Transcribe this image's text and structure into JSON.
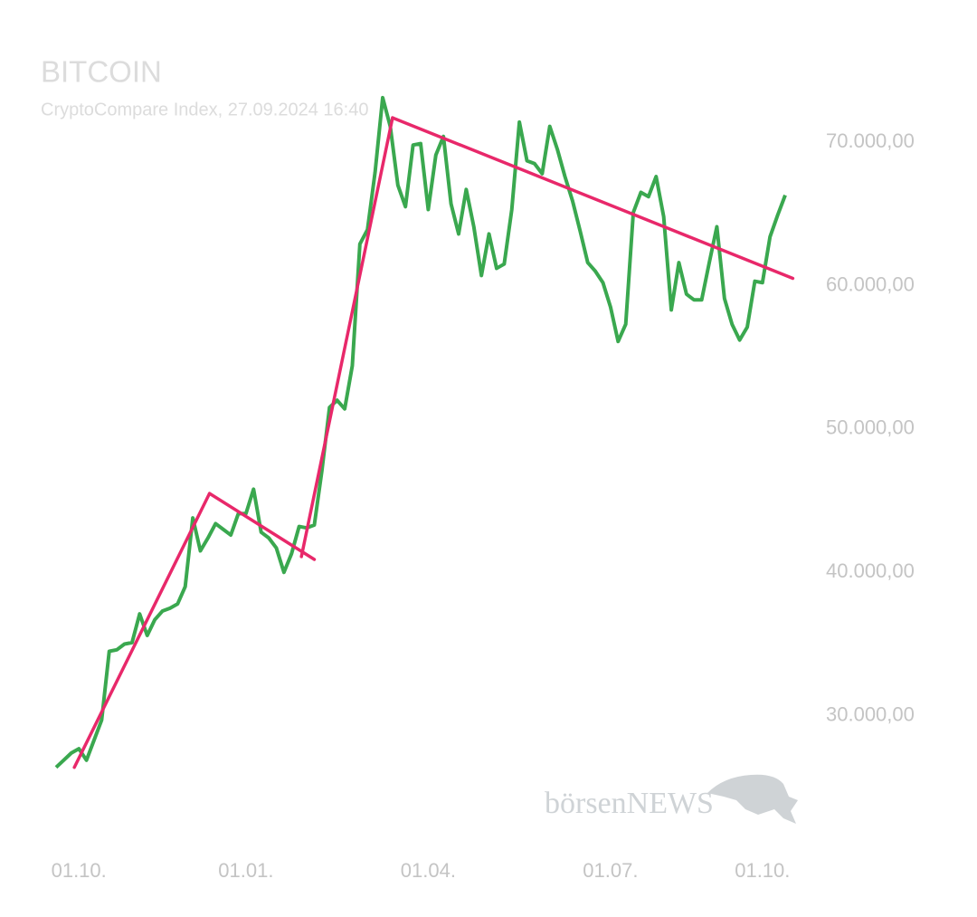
{
  "chart_data": {
    "type": "line",
    "title": "BITCOIN",
    "subtitle": "CryptoCompare Index, 27.09.2024 16:40",
    "watermark": "börsenNEWS",
    "categories": [
      null,
      null,
      null,
      "01.10.",
      null,
      null,
      null,
      null,
      null,
      null,
      null,
      null,
      null,
      null,
      null,
      null,
      null,
      null,
      null,
      null,
      null,
      null,
      null,
      null,
      null,
      "01.01.",
      null,
      null,
      null,
      null,
      null,
      null,
      null,
      null,
      null,
      null,
      null,
      null,
      null,
      null,
      null,
      null,
      null,
      null,
      null,
      null,
      null,
      null,
      null,
      "01.04.",
      null,
      null,
      null,
      null,
      null,
      null,
      null,
      null,
      null,
      null,
      null,
      null,
      null,
      null,
      null,
      null,
      null,
      null,
      null,
      null,
      null,
      null,
      null,
      "01.07.",
      null,
      null,
      null,
      null,
      null,
      null,
      null,
      null,
      null,
      null,
      null,
      null,
      null,
      null,
      null,
      null,
      null,
      null,
      null,
      "01.10.",
      null,
      null,
      null
    ],
    "series": [
      {
        "color": "#3aa84f",
        "values": [
          26400,
          26900,
          27400,
          27700,
          26900,
          28300,
          29700,
          34500,
          34600,
          35000,
          35100,
          37100,
          35600,
          36700,
          37300,
          37500,
          37800,
          39000,
          43800,
          41500,
          42400,
          43400,
          43000,
          42600,
          44100,
          44100,
          45800,
          42800,
          42400,
          41700,
          40000,
          41300,
          43200,
          43100,
          43300,
          47100,
          51500,
          52000,
          51400,
          54400,
          62900,
          63900,
          67900,
          73100,
          71100,
          67000,
          65500,
          69800,
          69900,
          65300,
          69100,
          70400,
          65700,
          63600,
          66700,
          64100,
          60700,
          63600,
          61200,
          61500,
          65300,
          71400,
          68700,
          68500,
          67800,
          71100,
          69500,
          67600,
          65900,
          63800,
          61600,
          61000,
          60200,
          58500,
          56100,
          57300,
          65100,
          66500,
          66200,
          67600,
          64800,
          58300,
          61600,
          59400,
          59000,
          59000,
          61600,
          64100,
          59100,
          57300,
          56200,
          57100,
          60300,
          60200,
          63400,
          64900,
          66300
        ]
      }
    ],
    "trend_lines": {
      "color": "#e8286a",
      "lines": [
        {
          "x": [
            2.4,
            20.2
          ],
          "values": [
            26400,
            45500
          ]
        },
        {
          "x": [
            20.2,
            34
          ],
          "values": [
            45500,
            40900
          ]
        },
        {
          "x": [
            32.3,
            44.3
          ],
          "values": [
            41100,
            71700
          ]
        },
        {
          "x": [
            44.3,
            97
          ],
          "values": [
            71700,
            60500
          ]
        }
      ]
    },
    "ylim": [
      23100,
      73600
    ],
    "yticks": [
      {
        "value": 30000,
        "label": "30.000,00"
      },
      {
        "value": 40000,
        "label": "40.000,00"
      },
      {
        "value": 50000,
        "label": "50.000,00"
      },
      {
        "value": 60000,
        "label": "60.000,00"
      },
      {
        "value": 70000,
        "label": "70.000,00"
      }
    ],
    "grid": false
  }
}
